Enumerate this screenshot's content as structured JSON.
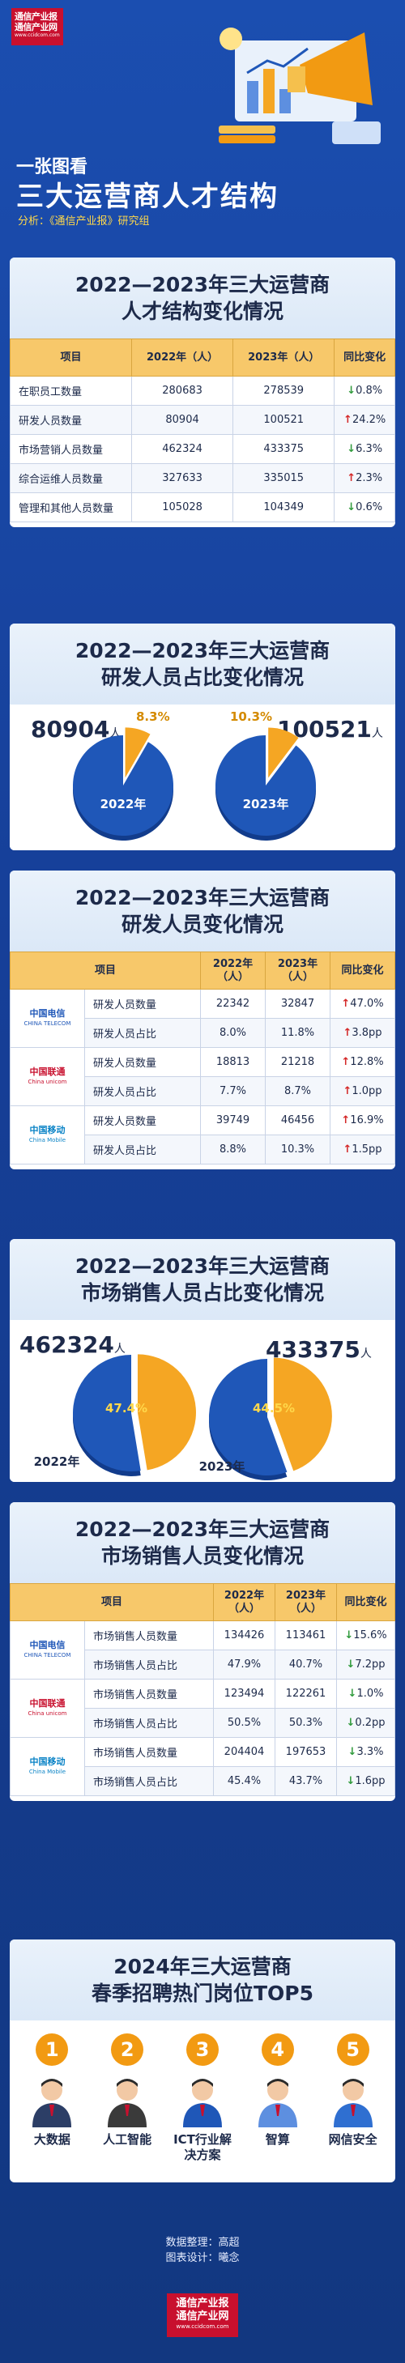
{
  "header": {
    "logo_line1": "通信产业报",
    "logo_line2": "通信产业网",
    "logo_url": "www.ccidcom.com",
    "kicker": "一张图看",
    "title": "三大运营商人才结构",
    "author": "分析：《通信产业报》研究组"
  },
  "colors": {
    "accent": "#f7c86a",
    "pie_blue": "#1f57b8",
    "pie_orange": "#f5a623",
    "up": "#d42626",
    "down": "#2f9a3b"
  },
  "section1": {
    "title_line1": "2022—2023年三大运营商",
    "title_line2": "人才结构变化情况",
    "headers": [
      "项目",
      "2022年（人）",
      "2023年（人）",
      "同比变化"
    ],
    "rows": [
      {
        "item": "在职员工数量",
        "y2022": "280683",
        "y2023": "278539",
        "dir": "down",
        "change": "0.8%"
      },
      {
        "item": "研发人员数量",
        "y2022": "80904",
        "y2023": "100521",
        "dir": "up",
        "change": "24.2%"
      },
      {
        "item": "市场营销人员数量",
        "y2022": "462324",
        "y2023": "433375",
        "dir": "down",
        "change": "6.3%"
      },
      {
        "item": "综合运维人员数量",
        "y2022": "327633",
        "y2023": "335015",
        "dir": "up",
        "change": "2.3%"
      },
      {
        "item": "管理和其他人员数量",
        "y2022": "105028",
        "y2023": "104349",
        "dir": "down",
        "change": "0.6%"
      }
    ]
  },
  "section2": {
    "title_line1": "2022—2023年三大运营商",
    "title_line2": "研发人员占比变化情况",
    "left_num": "80904",
    "right_num": "100521",
    "unit": "人",
    "year_left": "2022年",
    "year_right": "2023年",
    "pct_left_label": "8.3%",
    "pct_right_label": "10.3%"
  },
  "section3": {
    "title_line1": "2022—2023年三大运营商",
    "title_line2": "研发人员变化情况",
    "headers": [
      "项目",
      "",
      "2022年（人）",
      "2023年（人）",
      "同比变化"
    ],
    "groups": [
      {
        "brand": "中国电信",
        "brand_en": "CHINA TELECOM",
        "class": "telecom",
        "rows": [
          {
            "item": "研发人员数量",
            "y2022": "22342",
            "y2023": "32847",
            "dir": "up",
            "change": "47.0%"
          },
          {
            "item": "研发人员占比",
            "y2022": "8.0%",
            "y2023": "11.8%",
            "dir": "up",
            "change": "3.8pp"
          }
        ]
      },
      {
        "brand": "中国联通",
        "brand_en": "China unicom",
        "class": "unicom",
        "rows": [
          {
            "item": "研发人员数量",
            "y2022": "18813",
            "y2023": "21218",
            "dir": "up",
            "change": "12.8%"
          },
          {
            "item": "研发人员占比",
            "y2022": "7.7%",
            "y2023": "8.7%",
            "dir": "up",
            "change": "1.0pp"
          }
        ]
      },
      {
        "brand": "中国移动",
        "brand_en": "China Mobile",
        "class": "mobile",
        "rows": [
          {
            "item": "研发人员数量",
            "y2022": "39749",
            "y2023": "46456",
            "dir": "up",
            "change": "16.9%"
          },
          {
            "item": "研发人员占比",
            "y2022": "8.8%",
            "y2023": "10.3%",
            "dir": "up",
            "change": "1.5pp"
          }
        ]
      }
    ]
  },
  "section4": {
    "title_line1": "2022—2023年三大运营商",
    "title_line2": "市场销售人员占比变化情况",
    "left_num": "462324",
    "right_num": "433375",
    "unit": "人",
    "year_left": "2022年",
    "year_right": "2023年",
    "pct_left_label": "47.4%",
    "pct_right_label": "44.5%"
  },
  "section5": {
    "title_line1": "2022—2023年三大运营商",
    "title_line2": "市场销售人员变化情况",
    "headers": [
      "项目",
      "",
      "2022年（人）",
      "2023年（人）",
      "同比变化"
    ],
    "groups": [
      {
        "brand": "中国电信",
        "brand_en": "CHINA TELECOM",
        "class": "telecom",
        "rows": [
          {
            "item": "市场销售人员数量",
            "y2022": "134426",
            "y2023": "113461",
            "dir": "down",
            "change": "15.6%"
          },
          {
            "item": "市场销售人员占比",
            "y2022": "47.9%",
            "y2023": "40.7%",
            "dir": "down",
            "change": "7.2pp"
          }
        ]
      },
      {
        "brand": "中国联通",
        "brand_en": "China unicom",
        "class": "unicom",
        "rows": [
          {
            "item": "市场销售人员数量",
            "y2022": "123494",
            "y2023": "122261",
            "dir": "down",
            "change": "1.0%"
          },
          {
            "item": "市场销售人员占比",
            "y2022": "50.5%",
            "y2023": "50.3%",
            "dir": "down",
            "change": "0.2pp"
          }
        ]
      },
      {
        "brand": "中国移动",
        "brand_en": "China Mobile",
        "class": "mobile",
        "rows": [
          {
            "item": "市场销售人员数量",
            "y2022": "204404",
            "y2023": "197653",
            "dir": "down",
            "change": "3.3%"
          },
          {
            "item": "市场销售人员占比",
            "y2022": "45.4%",
            "y2023": "43.7%",
            "dir": "down",
            "change": "1.6pp"
          }
        ]
      }
    ]
  },
  "section6": {
    "title_line1": "2024年三大运营商",
    "title_line2": "春季招聘热门岗位TOP5",
    "jobs": [
      {
        "num": "1",
        "name": "大数据"
      },
      {
        "num": "2",
        "name": "人工智能"
      },
      {
        "num": "3",
        "name": "ICT行业解决方案"
      },
      {
        "num": "4",
        "name": "智算"
      },
      {
        "num": "5",
        "name": "网信安全"
      }
    ]
  },
  "footer": {
    "data_credit": "数据整理：高超",
    "design_credit": "图表设计：曦念",
    "logo_line1": "通信产业报",
    "logo_line2": "通信产业网",
    "logo_url": "www.ccidcom.com"
  },
  "chart_data": [
    {
      "type": "table",
      "title": "2022—2023年三大运营商人才结构变化情况",
      "columns": [
        "项目",
        "2022年（人）",
        "2023年（人）",
        "同比变化"
      ],
      "rows": [
        [
          "在职员工数量",
          280683,
          278539,
          "-0.8%"
        ],
        [
          "研发人员数量",
          80904,
          100521,
          "+24.2%"
        ],
        [
          "市场营销人员数量",
          462324,
          433375,
          "-6.3%"
        ],
        [
          "综合运维人员数量",
          327633,
          335015,
          "+2.3%"
        ],
        [
          "管理和其他人员数量",
          105028,
          104349,
          "-0.6%"
        ]
      ]
    },
    {
      "type": "pie",
      "title": "2022—2023年三大运营商研发人员占比变化情况",
      "categories": [
        "2022年",
        "2023年"
      ],
      "values": [
        8.3,
        10.3
      ]
    },
    {
      "type": "table",
      "title": "2022—2023年三大运营商研发人员变化情况"
    },
    {
      "type": "pie",
      "title": "2022—2023年三大运营商市场销售人员占比变化情况",
      "categories": [
        "2022年",
        "2023年"
      ],
      "values": [
        47.4,
        44.5
      ]
    },
    {
      "type": "table",
      "title": "2022—2023年三大运营商市场销售人员变化情况"
    }
  ]
}
